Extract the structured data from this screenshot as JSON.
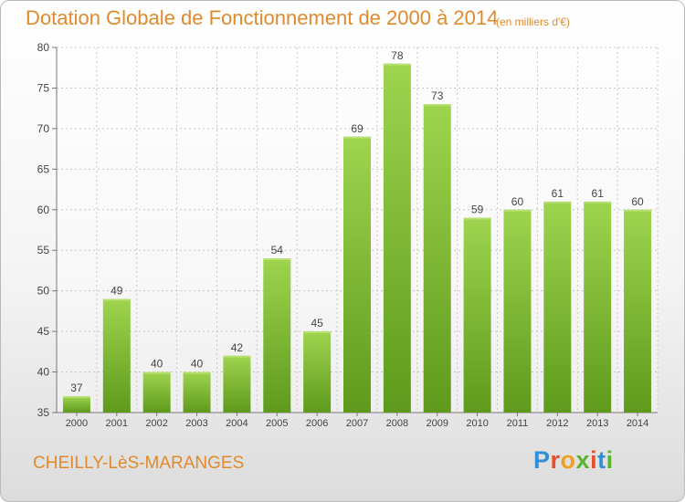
{
  "header": {
    "title": "Dotation Globale de Fonctionnement de 2000 à 2014",
    "unit": "(en milliers d'€)"
  },
  "footer": {
    "commune": "CHEILLY-LèS-MARANGES",
    "logo_letters": [
      "P",
      "r",
      "o",
      "x",
      "i",
      "t",
      "i"
    ],
    "logo_colors": [
      "#2f8fd8",
      "#e6502a",
      "#f0a020",
      "#59b42e",
      "#e6502a",
      "#2f8fd8",
      "#59b42e"
    ]
  },
  "chart_data": {
    "type": "bar",
    "title": "Dotation Globale de Fonctionnement de 2000 à 2014",
    "unit": "(en milliers d'€)",
    "categories": [
      "2000",
      "2001",
      "2002",
      "2003",
      "2004",
      "2005",
      "2006",
      "2007",
      "2008",
      "2009",
      "2010",
      "2011",
      "2012",
      "2013",
      "2014"
    ],
    "values": [
      37,
      49,
      40,
      40,
      42,
      54,
      45,
      69,
      78,
      73,
      59,
      60,
      61,
      61,
      60
    ],
    "ylim": [
      35,
      80
    ],
    "yticks": [
      35,
      40,
      45,
      50,
      55,
      60,
      65,
      70,
      75,
      80
    ],
    "grid": true,
    "legend": "none",
    "bar_color": "#8cc63f",
    "bar_color_dark": "#5f9a1c"
  }
}
